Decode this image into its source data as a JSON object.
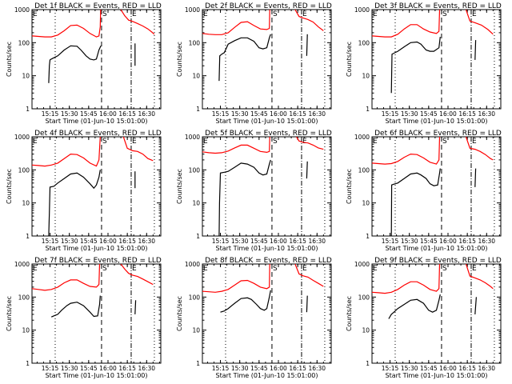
{
  "chart_data": {
    "type": "line",
    "layout": "3x3 grid of panels",
    "shared": {
      "ylabel": "Counts/sec",
      "xlabel": "Start Time (01-Jun-10 15:01:00)",
      "yscale": "log",
      "ylim": [
        1,
        1000
      ],
      "yticks": [
        1,
        10,
        100,
        1000
      ],
      "ytick_labels": [
        "1",
        "10",
        "100",
        "1000"
      ],
      "xlim_minutes_after_start": [
        0,
        100
      ],
      "xticks_minutes_after_start": [
        14,
        29,
        44,
        59,
        74,
        89
      ],
      "xtick_labels": [
        "15:15",
        "15:30",
        "15:45",
        "16:00",
        "16:15",
        "16:30"
      ],
      "series_colors": {
        "events": "#000000",
        "lld": "#ff0000"
      },
      "markers": [
        {
          "label": "E",
          "minute": 0,
          "style": "none"
        },
        {
          "label": "",
          "minute": 18,
          "style": "dotted"
        },
        {
          "label": "S",
          "minute": 54,
          "style": "dashed"
        },
        {
          "label": "E",
          "minute": 77,
          "style": "dashdot"
        },
        {
          "label": "",
          "minute": 95,
          "style": "dotted"
        }
      ]
    },
    "panels": [
      {
        "title": "Det 1f BLACK = Events, RED = LLD",
        "series": [
          {
            "name": "Events",
            "color": "#000000",
            "x": [
              13,
              13.5,
              14,
              15,
              17,
              20,
              25,
              30,
              35,
              38,
              42,
              45,
              48,
              50,
              52,
              53.5
            ],
            "y": [
              6,
              20,
              30,
              32,
              35,
              40,
              60,
              80,
              78,
              60,
              40,
              32,
              30,
              32,
              60,
              80
            ]
          },
          {
            "name": "Events-segment2",
            "color": "#000000",
            "x": [
              80,
              80
            ],
            "y": [
              20,
              95
            ]
          },
          {
            "name": "LLD",
            "color": "#ff0000",
            "x": [
              0,
              5,
              10,
              15,
              20,
              25,
              30,
              35,
              40,
              45,
              50,
              52,
              53,
              53.3
            ],
            "y": [
              160,
              155,
              150,
              150,
              170,
              230,
              330,
              340,
              270,
              190,
              150,
              160,
              300,
              1000
            ]
          },
          {
            "name": "LLD-segment2",
            "color": "#ff0000",
            "x": [
              69,
              72,
              75,
              78,
              82,
              86,
              90,
              93,
              95
            ],
            "y": [
              1000,
              650,
              480,
              440,
              380,
              320,
              260,
              210,
              180
            ]
          }
        ]
      },
      {
        "title": "Det 2f BLACK = Events, RED = LLD",
        "series": [
          {
            "name": "Events",
            "color": "#000000",
            "x": [
              13,
              13.5,
              15,
              17,
              20,
              25,
              30,
              35,
              40,
              44,
              47,
              50,
              52,
              53
            ],
            "y": [
              7,
              40,
              45,
              50,
              90,
              115,
              140,
              140,
              110,
              70,
              65,
              70,
              140,
              180
            ]
          },
          {
            "name": "Events-segment2",
            "color": "#000000",
            "x": [
              81,
              81.5
            ],
            "y": [
              40,
              180
            ]
          },
          {
            "name": "LLD",
            "color": "#ff0000",
            "x": [
              0,
              5,
              10,
              15,
              20,
              25,
              30,
              35,
              40,
              45,
              50,
              52,
              52.3
            ],
            "y": [
              190,
              180,
              175,
              175,
              200,
              290,
              410,
              430,
              330,
              260,
              250,
              270,
              1000
            ]
          },
          {
            "name": "LLD-segment2",
            "color": "#ff0000",
            "x": [
              72,
              75,
              78,
              82,
              86,
              90,
              94
            ],
            "y": [
              1000,
              620,
              560,
              500,
              420,
              300,
              230
            ]
          }
        ]
      },
      {
        "title": "Det 3f BLACK = Events, RED = LLD",
        "series": [
          {
            "name": "Events",
            "color": "#000000",
            "x": [
              15,
              15.5,
              17,
              20,
              25,
              30,
              35,
              38,
              42,
              45,
              48,
              52,
              53
            ],
            "y": [
              3,
              45,
              48,
              55,
              75,
              100,
              105,
              90,
              60,
              55,
              55,
              70,
              150
            ]
          },
          {
            "name": "Events-segment2",
            "color": "#000000",
            "x": [
              80,
              80.5
            ],
            "y": [
              30,
              120
            ]
          },
          {
            "name": "LLD",
            "color": "#ff0000",
            "x": [
              0,
              5,
              10,
              15,
              20,
              25,
              30,
              35,
              40,
              45,
              50,
              52,
              52.5
            ],
            "y": [
              160,
              155,
              150,
              150,
              180,
              260,
              350,
              350,
              260,
              210,
              190,
              220,
              1000
            ]
          },
          {
            "name": "LLD-segment2",
            "color": "#ff0000",
            "x": [
              73,
              76,
              80,
              85,
              90,
              94
            ],
            "y": [
              1000,
              450,
              400,
              340,
              250,
              180
            ]
          }
        ]
      },
      {
        "title": "Det 4f BLACK = Events, RED = LLD",
        "series": [
          {
            "name": "Events",
            "color": "#000000",
            "x": [
              13,
              13.5,
              14,
              17,
              20,
              25,
              30,
              35,
              40,
              45,
              48,
              50,
              52,
              53
            ],
            "y": [
              1,
              5,
              30,
              32,
              40,
              55,
              75,
              80,
              60,
              38,
              28,
              35,
              60,
              100
            ]
          },
          {
            "name": "Events-segment2",
            "color": "#000000",
            "x": [
              80,
              80
            ],
            "y": [
              28,
              90
            ]
          },
          {
            "name": "LLD",
            "color": "#ff0000",
            "x": [
              0,
              5,
              10,
              15,
              20,
              25,
              30,
              35,
              40,
              45,
              50,
              52,
              53
            ],
            "y": [
              140,
              135,
              130,
              140,
              160,
              220,
              300,
              290,
              230,
              160,
              130,
              200,
              1000
            ]
          },
          {
            "name": "LLD-segment2",
            "color": "#ff0000",
            "x": [
              71,
              74,
              78,
              82,
              86,
              90,
              94
            ],
            "y": [
              1000,
              450,
              380,
              360,
              300,
              220,
              190
            ]
          }
        ]
      },
      {
        "title": "Det 5f BLACK = Events, RED = LLD",
        "series": [
          {
            "name": "Events",
            "color": "#000000",
            "x": [
              13,
              13.3,
              14,
              17,
              20,
              25,
              30,
              35,
              40,
              44,
              47,
              50,
              52,
              53
            ],
            "y": [
              1,
              10,
              80,
              85,
              90,
              120,
              160,
              150,
              120,
              80,
              70,
              75,
              150,
              200
            ]
          },
          {
            "name": "Events-segment2",
            "color": "#000000",
            "x": [
              81,
              81.5
            ],
            "y": [
              55,
              180
            ]
          },
          {
            "name": "LLD",
            "color": "#ff0000",
            "x": [
              0,
              5,
              10,
              15,
              20,
              25,
              30,
              35,
              40,
              45,
              50,
              52,
              52.3
            ],
            "y": [
              350,
              330,
              320,
              330,
              370,
              460,
              560,
              560,
              450,
              360,
              340,
              360,
              1000
            ]
          },
          {
            "name": "LLD-segment2",
            "color": "#ff0000",
            "x": [
              73,
              75,
              78,
              82,
              86,
              90,
              94
            ],
            "y": [
              1000,
              750,
              680,
              650,
              560,
              460,
              420
            ]
          }
        ]
      },
      {
        "title": "Det 6f BLACK = Events, RED = LLD",
        "series": [
          {
            "name": "Events",
            "color": "#000000",
            "x": [
              15,
              15.3,
              17,
              20,
              25,
              30,
              35,
              38,
              42,
              45,
              48,
              51,
              52.5,
              53
            ],
            "y": [
              1,
              35,
              37,
              40,
              55,
              75,
              80,
              70,
              55,
              38,
              33,
              35,
              80,
              110
            ]
          },
          {
            "name": "Events-segment2",
            "color": "#000000",
            "x": [
              80,
              80.5
            ],
            "y": [
              30,
              110
            ]
          },
          {
            "name": "LLD",
            "color": "#ff0000",
            "x": [
              0,
              5,
              10,
              15,
              20,
              25,
              30,
              35,
              40,
              45,
              50,
              52,
              52.5
            ],
            "y": [
              160,
              155,
              150,
              155,
              180,
              240,
              300,
              290,
              230,
              170,
              150,
              200,
              1000
            ]
          },
          {
            "name": "LLD-segment2",
            "color": "#ff0000",
            "x": [
              73,
              76,
              80,
              84,
              88,
              92,
              94
            ],
            "y": [
              1000,
              450,
              420,
              360,
              290,
              220,
              200
            ]
          }
        ]
      },
      {
        "title": "Det 7f BLACK = Events, RED = LLD",
        "series": [
          {
            "name": "Events",
            "color": "#000000",
            "x": [
              15,
              17,
              20,
              23,
              27,
              30,
              35,
              40,
              45,
              48,
              51,
              52.5,
              53
            ],
            "y": [
              25,
              27,
              30,
              40,
              55,
              65,
              70,
              55,
              35,
              26,
              27,
              60,
              110
            ]
          },
          {
            "name": "Events-segment2",
            "color": "#000000",
            "x": [
              80,
              80.5
            ],
            "y": [
              30,
              80
            ]
          },
          {
            "name": "LLD",
            "color": "#ff0000",
            "x": [
              0,
              5,
              10,
              15,
              20,
              25,
              30,
              35,
              40,
              45,
              50,
              52,
              52.5
            ],
            "y": [
              180,
              170,
              160,
              170,
              200,
              270,
              330,
              330,
              260,
              210,
              200,
              240,
              1000
            ]
          },
          {
            "name": "LLD-segment2",
            "color": "#ff0000",
            "x": [
              69,
              72,
              75,
              78,
              82,
              86,
              90,
              94
            ],
            "y": [
              1000,
              700,
              520,
              460,
              420,
              350,
              290,
              240
            ]
          }
        ]
      },
      {
        "title": "Det 8f BLACK = Events, RED = LLD",
        "series": [
          {
            "name": "Events",
            "color": "#000000",
            "x": [
              14,
              17,
              20,
              25,
              30,
              35,
              38,
              42,
              45,
              48,
              50,
              52,
              53
            ],
            "y": [
              35,
              38,
              45,
              65,
              90,
              95,
              85,
              60,
              45,
              40,
              45,
              100,
              160
            ]
          },
          {
            "name": "Events-segment2",
            "color": "#000000",
            "x": [
              81,
              81.5
            ],
            "y": [
              35,
              110
            ]
          },
          {
            "name": "LLD",
            "color": "#ff0000",
            "x": [
              0,
              5,
              10,
              15,
              20,
              25,
              30,
              35,
              40,
              45,
              50,
              52,
              52.3
            ],
            "y": [
              150,
              145,
              140,
              150,
              170,
              230,
              310,
              320,
              260,
              200,
              180,
              200,
              1000
            ]
          },
          {
            "name": "LLD-segment2",
            "color": "#ff0000",
            "x": [
              72,
              75,
              78,
              82,
              86,
              90,
              94
            ],
            "y": [
              1000,
              500,
              440,
              400,
              320,
              260,
              210
            ]
          }
        ]
      },
      {
        "title": "Det 9f BLACK = Events, RED = LLD",
        "series": [
          {
            "name": "Events",
            "color": "#000000",
            "x": [
              13,
              15,
              17,
              20,
              25,
              30,
              35,
              40,
              44,
              47,
              50,
              52,
              53
            ],
            "y": [
              22,
              30,
              35,
              45,
              60,
              80,
              85,
              65,
              40,
              35,
              40,
              80,
              120
            ]
          },
          {
            "name": "Events-segment2",
            "color": "#000000",
            "x": [
              80,
              81
            ],
            "y": [
              30,
              100
            ]
          },
          {
            "name": "LLD",
            "color": "#ff0000",
            "x": [
              0,
              5,
              10,
              15,
              20,
              25,
              30,
              35,
              40,
              45,
              50,
              52,
              52.5
            ],
            "y": [
              140,
              135,
              130,
              140,
              170,
              230,
              290,
              290,
              230,
              170,
              150,
              180,
              1000
            ]
          },
          {
            "name": "LLD-segment2",
            "color": "#ff0000",
            "x": [
              73,
              76,
              80,
              84,
              88,
              92,
              94
            ],
            "y": [
              1000,
              430,
              380,
              330,
              270,
              210,
              180
            ]
          }
        ]
      }
    ]
  }
}
